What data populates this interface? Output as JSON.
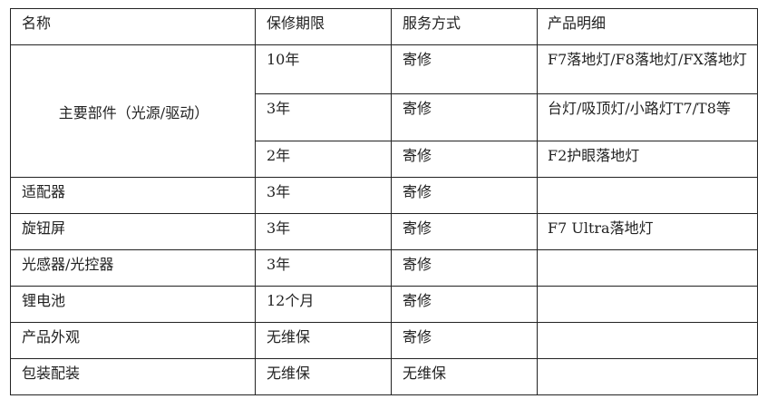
{
  "headers": [
    "名称",
    "保修期限",
    "服务方式",
    "产品明细"
  ],
  "main_part": "主要部件（光源/驱动）",
  "main_rows": [
    {
      "period": "10年",
      "service": "寄修",
      "products": "F7落地灯/F8落地灯/FX落地灯"
    },
    {
      "period": "3年",
      "service": "寄修",
      "products": "台灯/吸顶灯/小路灯T7/T8等"
    },
    {
      "period": "2年",
      "service": "寄修",
      "products": "F2护眼落地灯"
    }
  ],
  "rows": [
    {
      "name": "适配器",
      "period": "3年",
      "service": "寄修",
      "products": ""
    },
    {
      "name": "旋钮屏",
      "period": "3年",
      "service": "寄修",
      "products": "F7 Ultra落地灯"
    },
    {
      "name": "光感器/光控器",
      "period": "3年",
      "service": "寄修",
      "products": ""
    },
    {
      "name": "锂电池",
      "period": "12个月",
      "service": "寄修",
      "products": ""
    },
    {
      "name": "产品外观",
      "period": "无维保",
      "service": "寄修",
      "products": ""
    },
    {
      "name": "包装配装",
      "period": "无维保",
      "service": "无维保",
      "products": ""
    }
  ]
}
